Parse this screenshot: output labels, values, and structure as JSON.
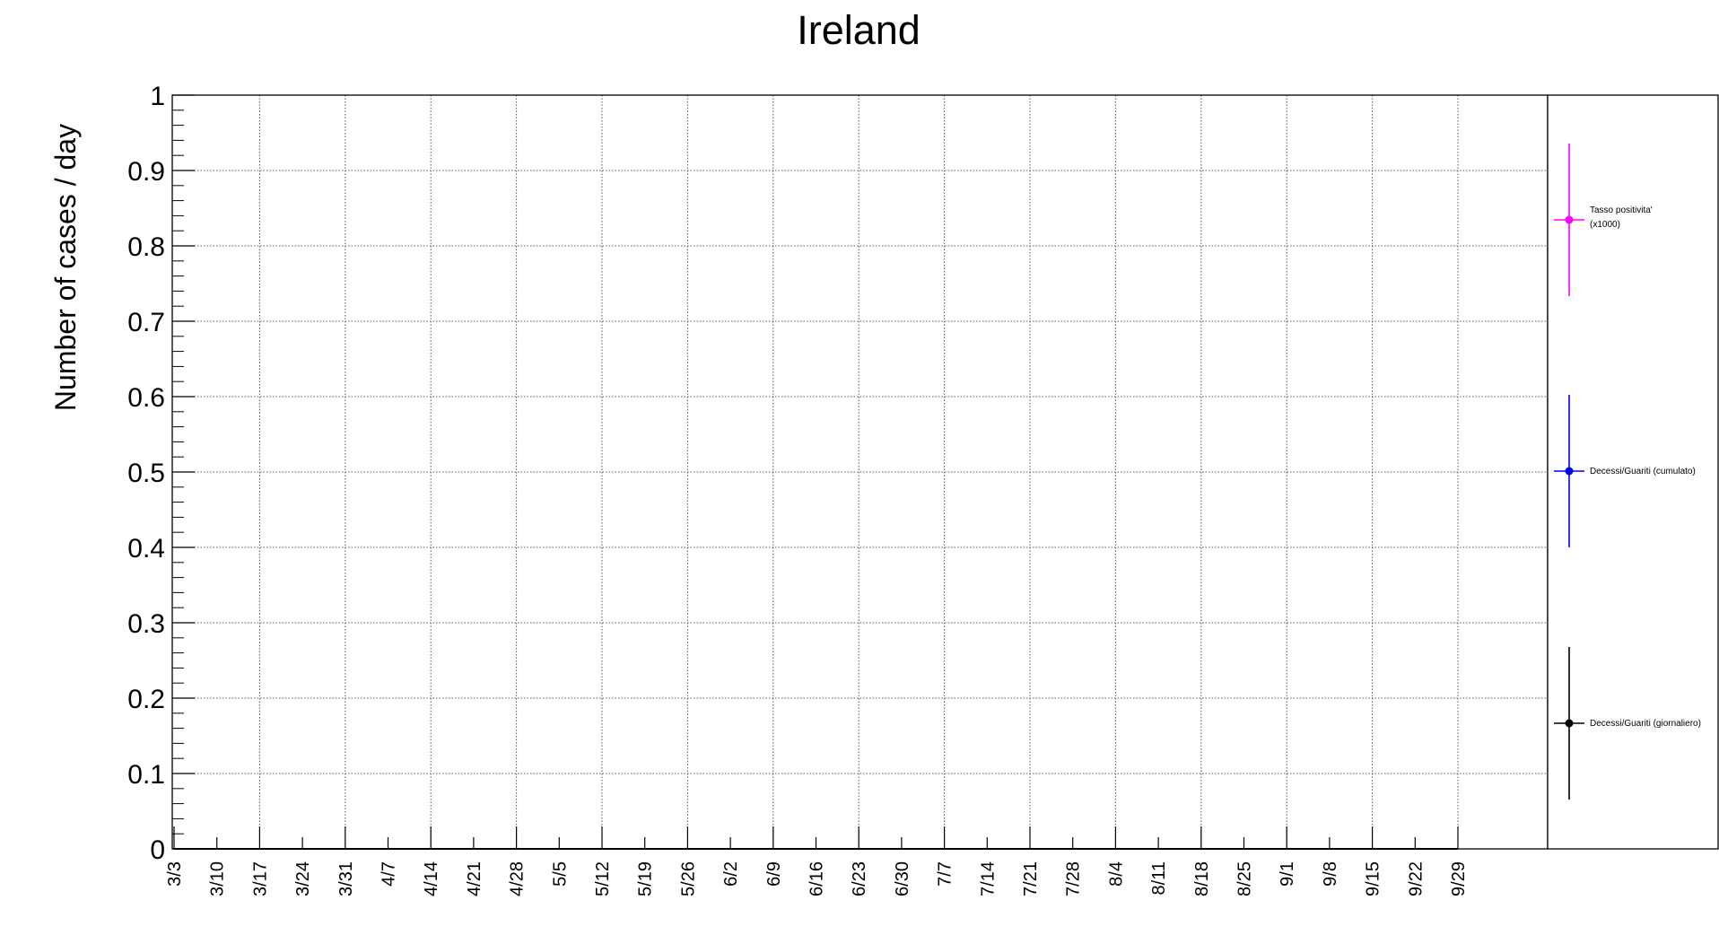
{
  "chart_data": {
    "type": "line",
    "title": "Ireland",
    "xlabel": "",
    "ylabel": "Number of cases / day",
    "ylim": [
      0,
      1
    ],
    "yticks": [
      "0",
      "0.1",
      "0.2",
      "0.3",
      "0.4",
      "0.5",
      "0.6",
      "0.7",
      "0.8",
      "0.9",
      "1"
    ],
    "xticks": [
      "3/3",
      "3/10",
      "3/17",
      "3/24",
      "3/31",
      "4/7",
      "4/14",
      "4/21",
      "4/28",
      "5/5",
      "5/12",
      "5/19",
      "5/26",
      "6/2",
      "6/9",
      "6/16",
      "6/23",
      "6/30",
      "7/7",
      "7/14",
      "7/21",
      "7/28",
      "8/4",
      "8/11",
      "8/18",
      "8/25",
      "9/1",
      "9/8",
      "9/15",
      "9/22",
      "9/29"
    ],
    "grid": true,
    "legend_position": "right",
    "series": [
      {
        "name": "Tasso positivita' (x1000)",
        "color": "#ff00ff",
        "values": [
          0,
          0,
          0,
          0,
          0,
          0,
          0,
          0,
          0,
          0,
          0,
          0,
          0,
          0,
          0,
          0,
          0,
          0,
          0,
          0,
          0,
          0,
          0,
          0,
          0,
          0,
          0,
          0,
          0,
          0,
          0
        ]
      },
      {
        "name": "Decessi/Guariti (cumulato)",
        "color": "#0000ff",
        "values": [
          0,
          0,
          0,
          0,
          0,
          0,
          0,
          0,
          0,
          0,
          0,
          0,
          0,
          0,
          0,
          0,
          0,
          0,
          0,
          0,
          0,
          0,
          0,
          0,
          0,
          0,
          0,
          0,
          0,
          0,
          0
        ]
      },
      {
        "name": "Decessi/Guariti (giornaliero)",
        "color": "#000000",
        "values": [
          0,
          0,
          0,
          0,
          0,
          0,
          0,
          0,
          0,
          0,
          0,
          0,
          0,
          0,
          0,
          0,
          0,
          0,
          0,
          0,
          0,
          0,
          0,
          0,
          0,
          0,
          0,
          0,
          0,
          0,
          0
        ]
      }
    ]
  }
}
